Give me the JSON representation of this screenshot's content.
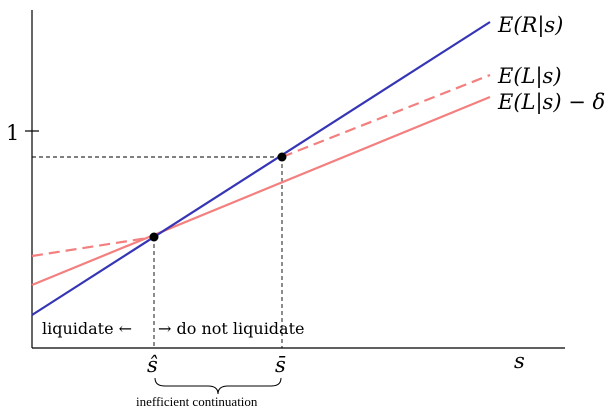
{
  "axes": {
    "y_tick_label": "1",
    "x_axis_label": "s"
  },
  "lines": {
    "r_label": "E(R|s)",
    "l_label": "E(L|s)",
    "l_delta_label": "E(L|s) − δ",
    "r_color": "#3535b5",
    "l_color": "#f37f7f"
  },
  "ticks": {
    "s_hat": "ŝ",
    "s_bar": "s̄"
  },
  "annotations": {
    "liquidate_text": "liquidate ←",
    "no_liquidate_text": "→ do not liquidate",
    "brace_caption": "inefficient continuation"
  }
}
